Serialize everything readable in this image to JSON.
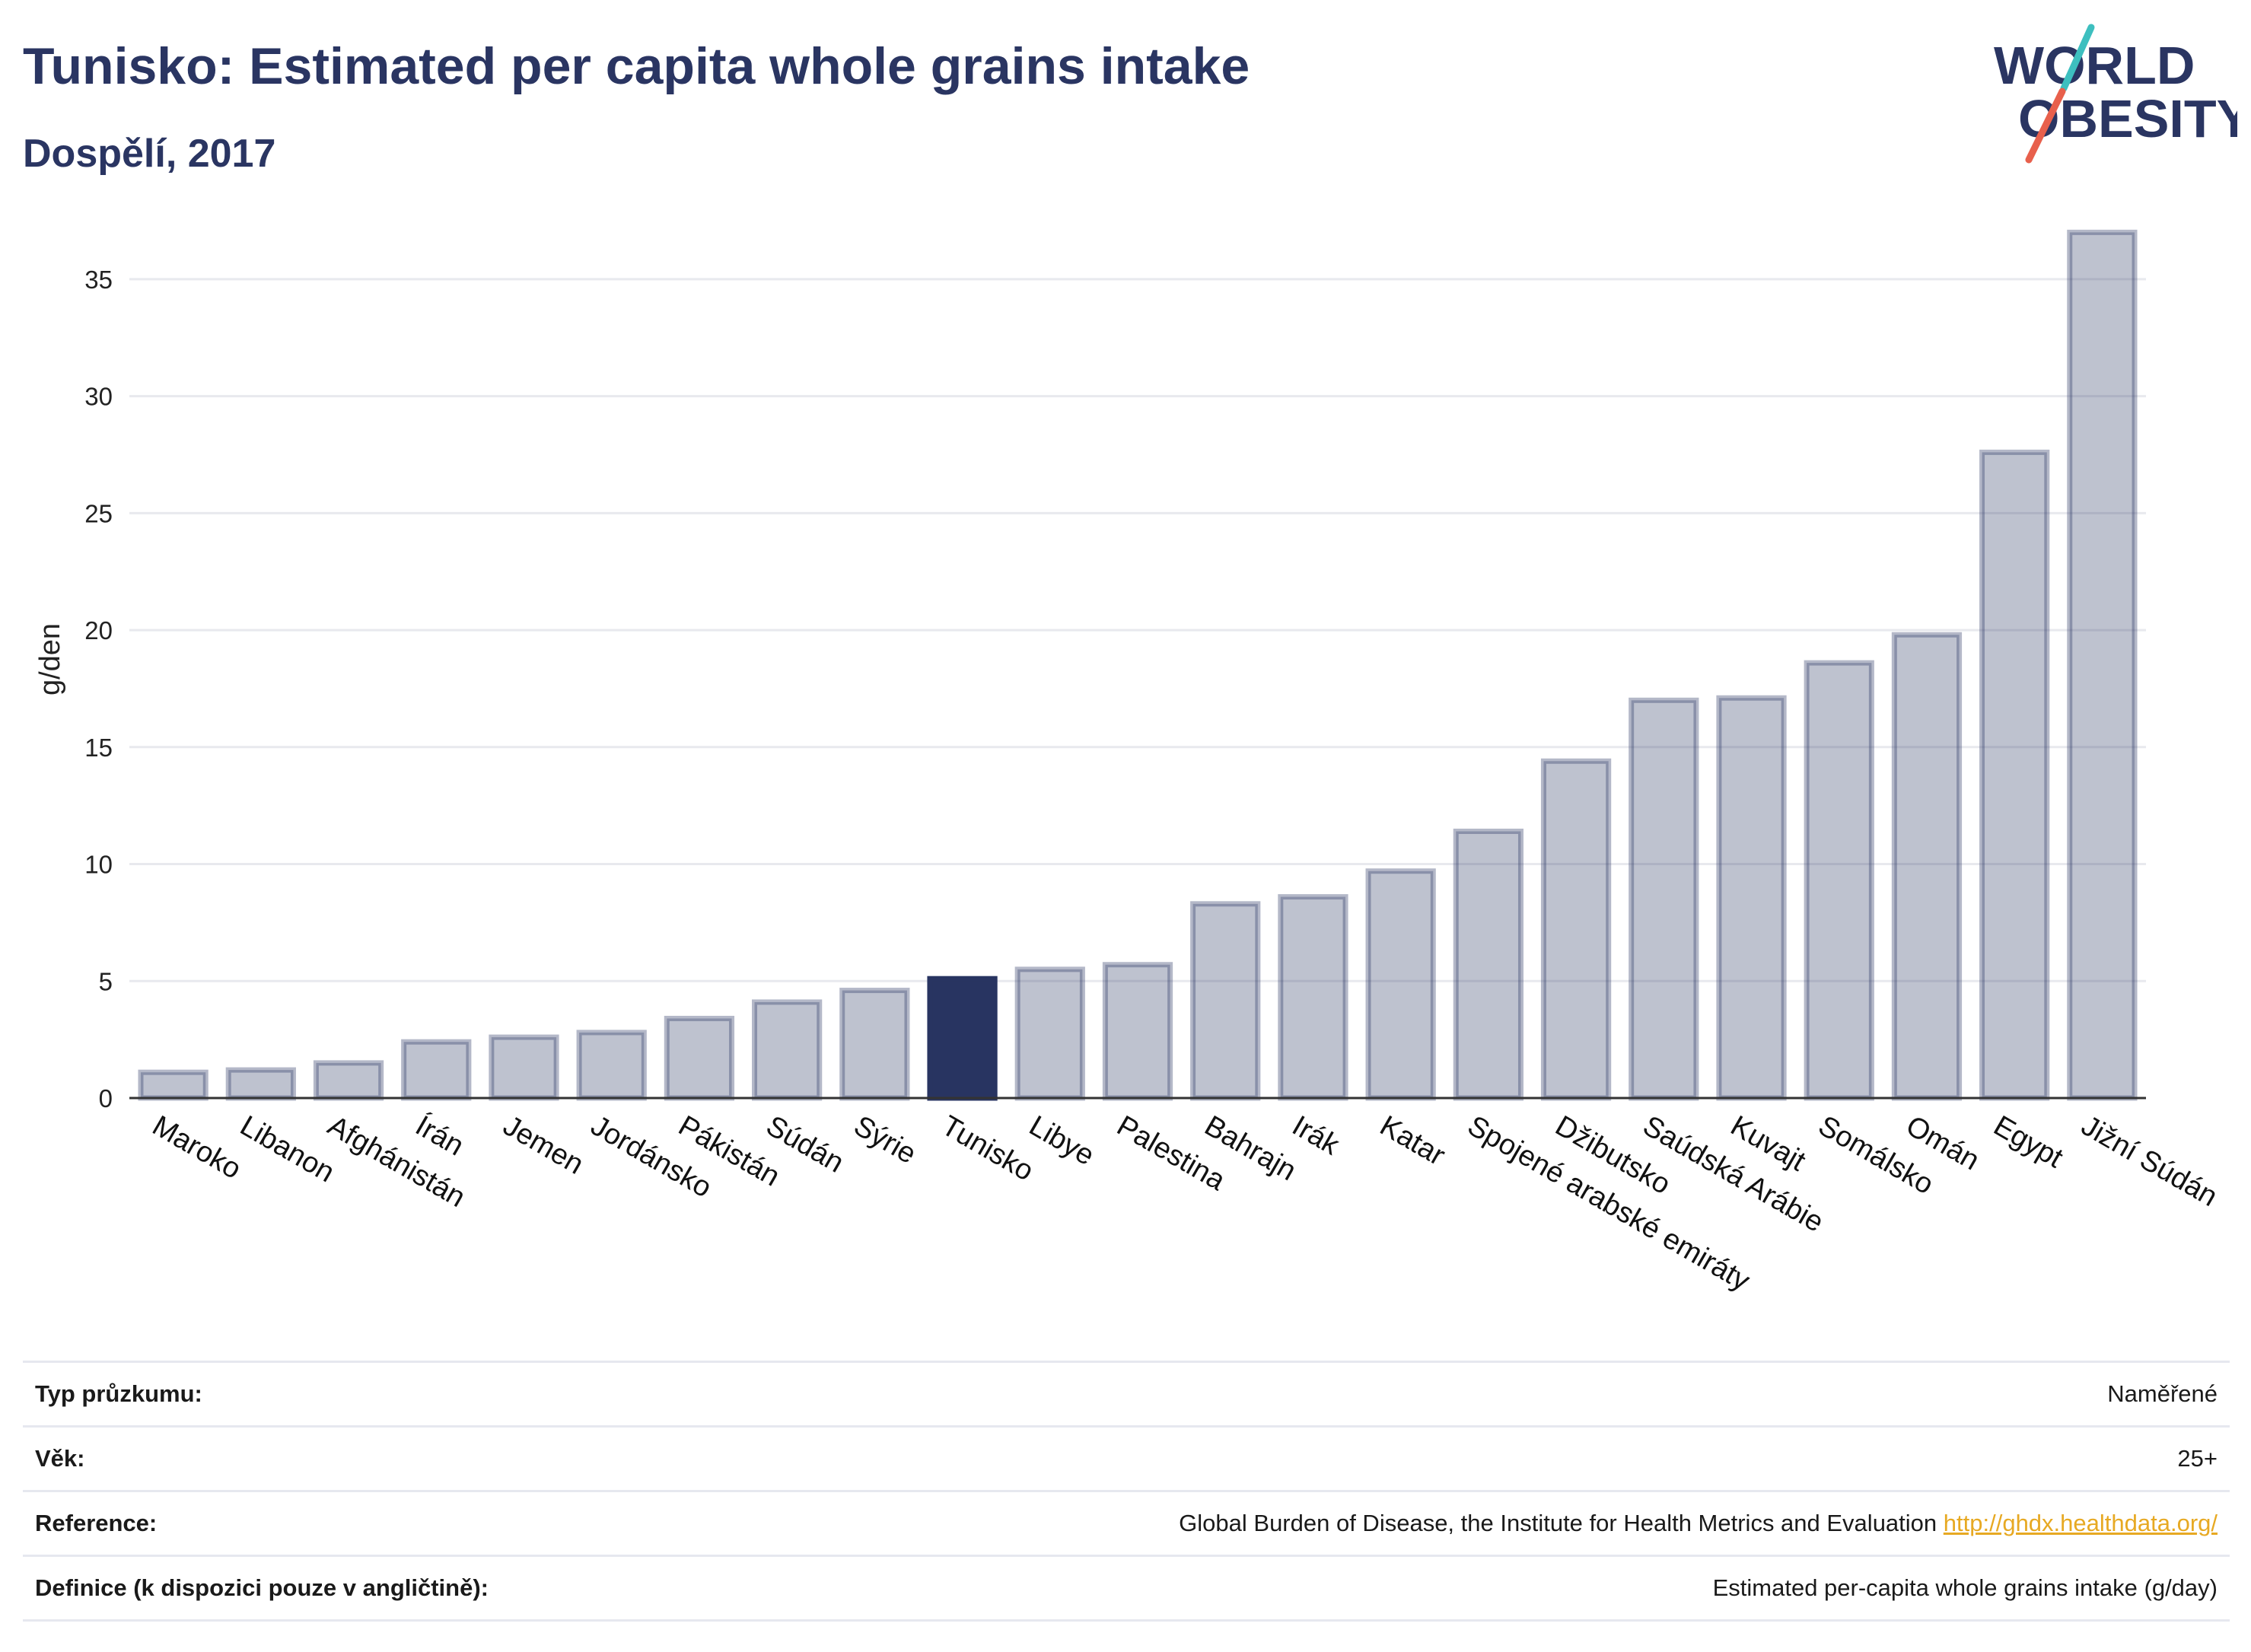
{
  "header": {
    "title": "Tunisko: Estimated per capita whole grains intake",
    "subtitle": "Dospělí, 2017"
  },
  "logo": {
    "line1": "WORLD",
    "line2": "OBESITY",
    "colors": {
      "text": "#2a3562",
      "slash_top": "#3dbfbf",
      "slash_bottom": "#e8604c"
    }
  },
  "chart_data": {
    "type": "bar",
    "ylabel": "g/den",
    "xlabel": "",
    "ylim": [
      0,
      37.5
    ],
    "yticks": [
      0,
      5,
      10,
      15,
      20,
      25,
      30,
      35
    ],
    "grid": true,
    "highlight": "Tunisko",
    "colors": {
      "bar": "#283461",
      "highlight": "#283461",
      "bar_opacity": 0.3
    },
    "categories": [
      "Maroko",
      "Libanon",
      "Afghánistán",
      "Írán",
      "Jemen",
      "Jordánsko",
      "Pákistán",
      "Súdán",
      "Sýrie",
      "Tunisko",
      "Libye",
      "Palestina",
      "Bahrajn",
      "Irák",
      "Katar",
      "Spojené arabské emiráty",
      "Džibutsko",
      "Saúdská Arábie",
      "Kuvajt",
      "Somálsko",
      "Omán",
      "Egypt",
      "Jižní Súdán"
    ],
    "values": [
      1.1,
      1.2,
      1.5,
      2.4,
      2.6,
      2.8,
      3.4,
      4.1,
      4.6,
      5.1,
      5.5,
      5.7,
      8.3,
      8.6,
      9.7,
      11.4,
      14.4,
      17.0,
      17.1,
      18.6,
      19.8,
      27.6,
      37.0
    ]
  },
  "info": {
    "rows": [
      {
        "label": "Typ průzkumu:",
        "value": "Naměřené"
      },
      {
        "label": "Věk:",
        "value": "25+"
      },
      {
        "label": "Reference:",
        "value": "Global Burden of Disease, the Institute for Health Metrics and Evaluation",
        "link": "http://ghdx.healthdata.org/"
      },
      {
        "label": "Definice (k dispozici pouze v angličtině):",
        "value": "Estimated per-capita whole grains intake (g/day)"
      }
    ]
  }
}
